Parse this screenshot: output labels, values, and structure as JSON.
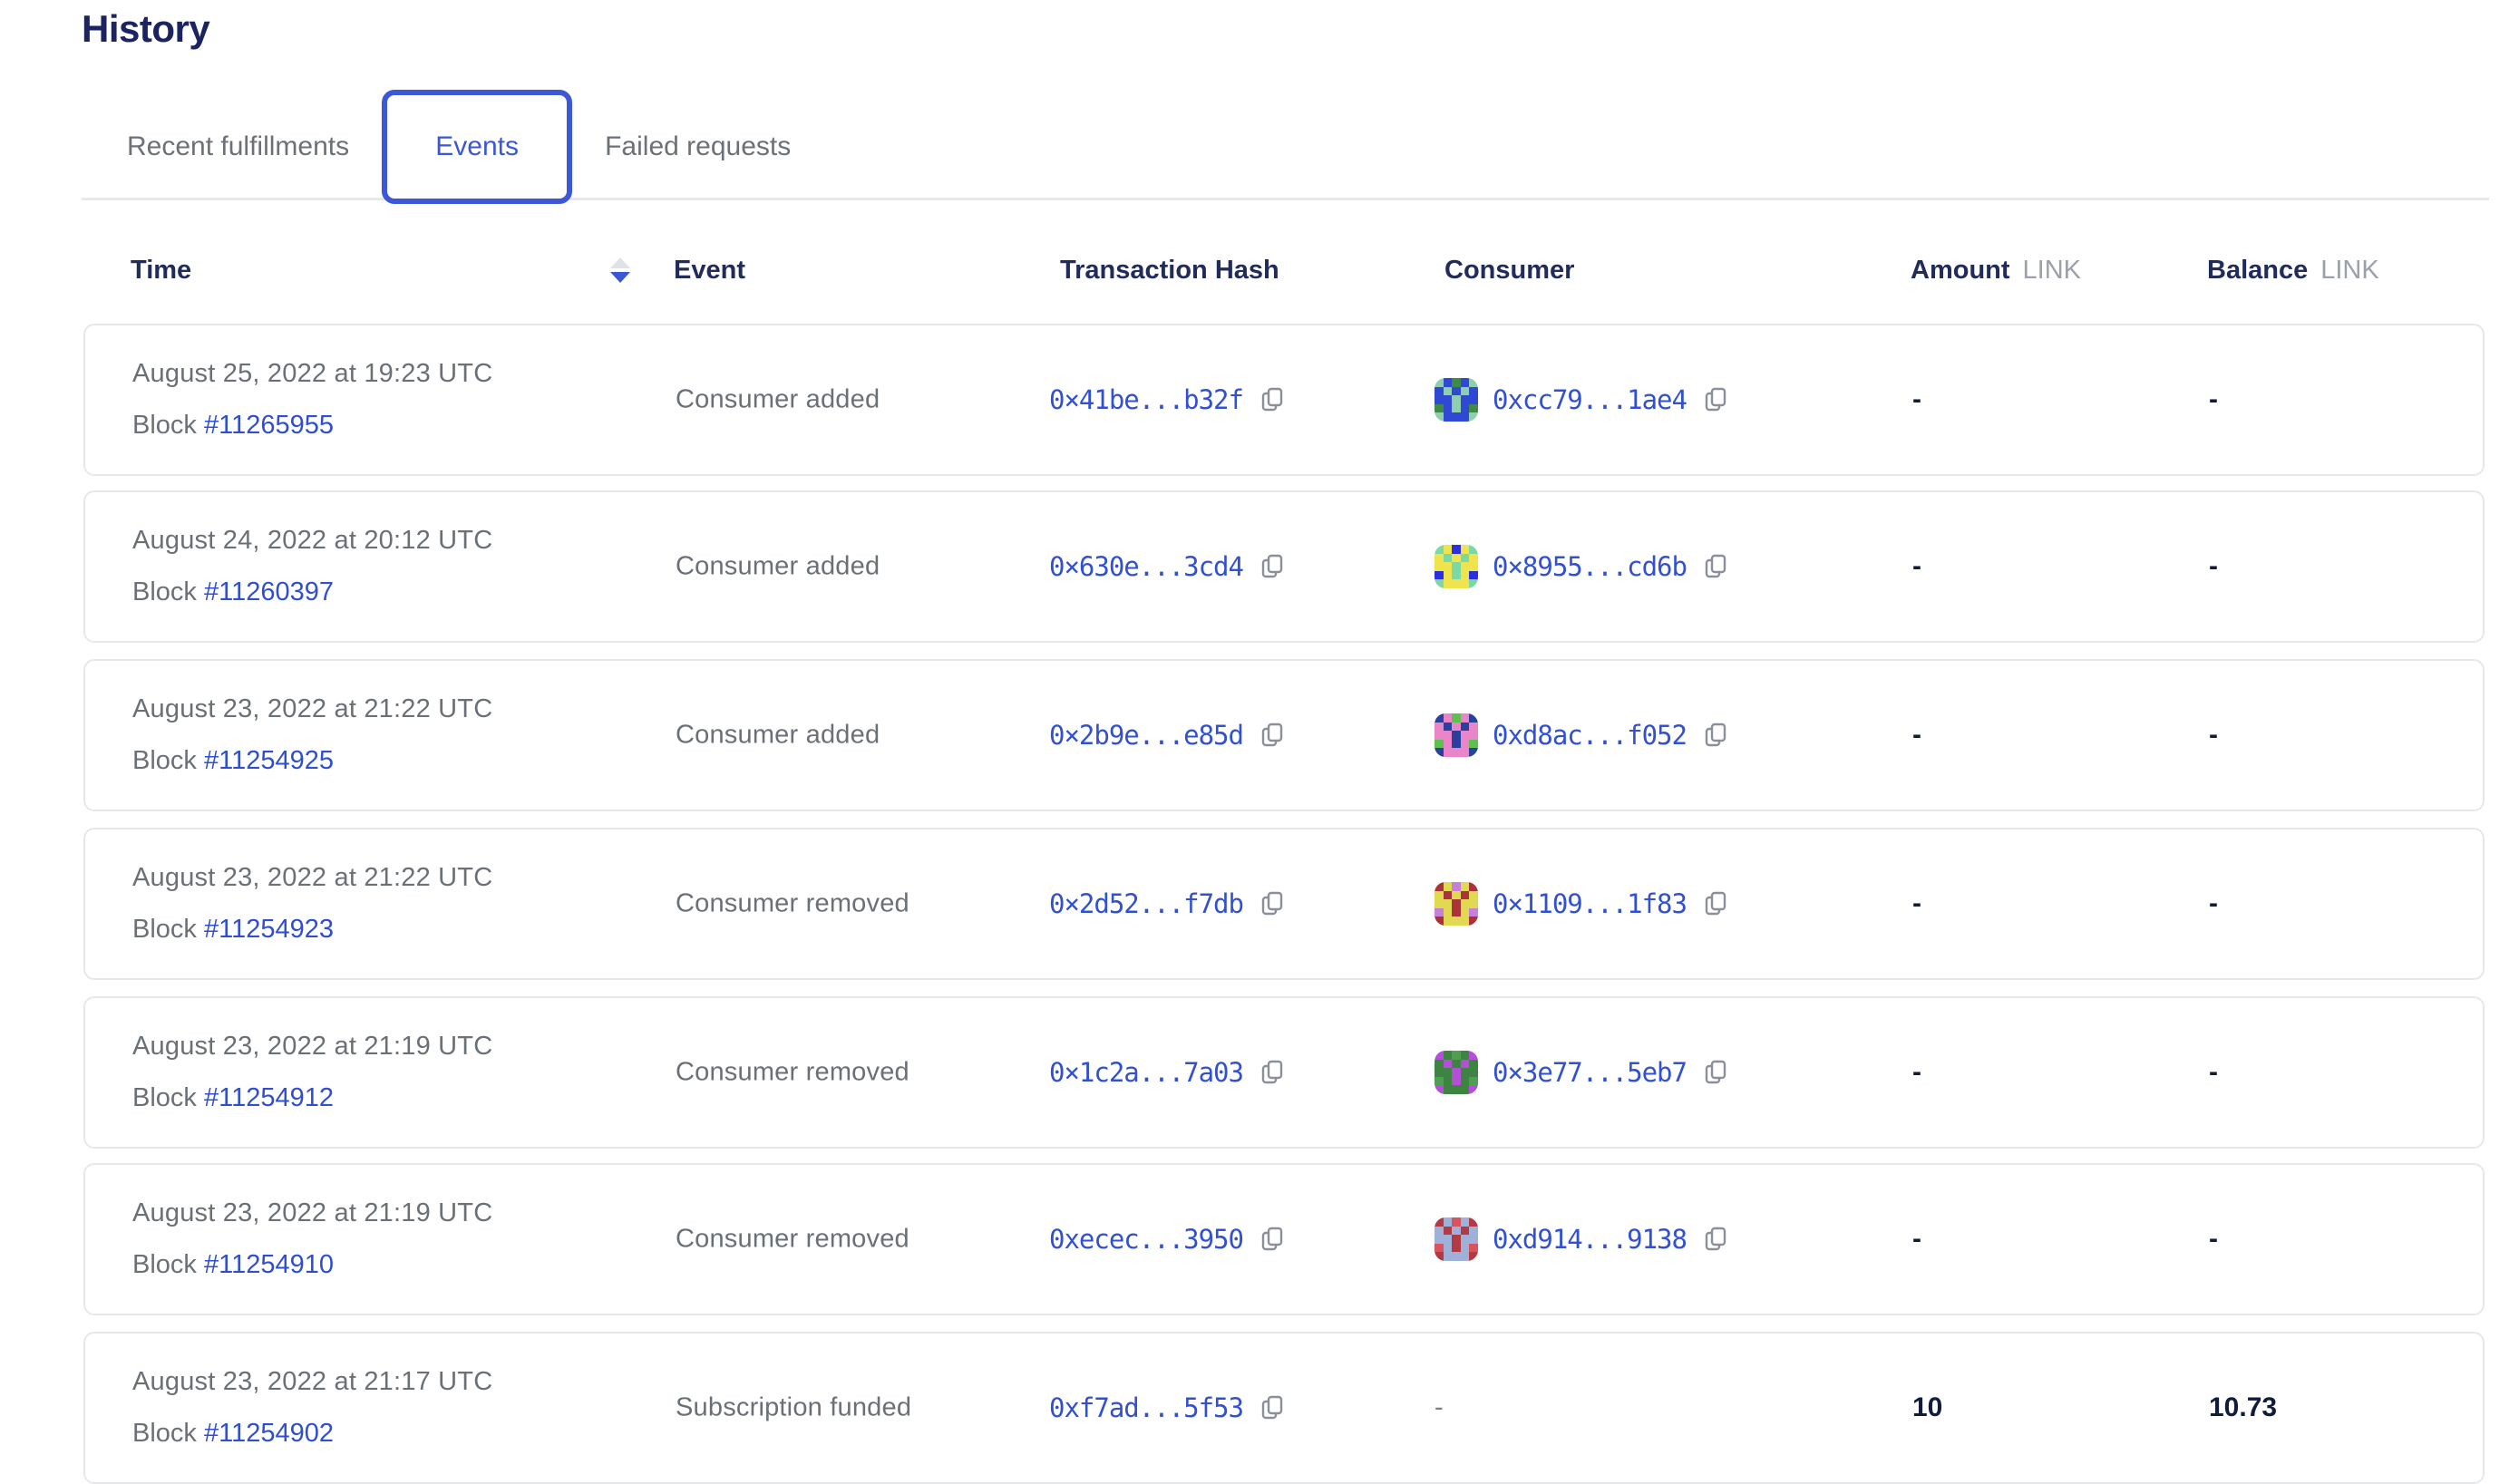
{
  "page": {
    "title": "History"
  },
  "tabs": {
    "items": [
      {
        "label": "Recent fulfillments",
        "active": false
      },
      {
        "label": "Events",
        "active": true
      },
      {
        "label": "Failed requests",
        "active": false
      }
    ]
  },
  "table": {
    "headers": {
      "time": "Time",
      "event": "Event",
      "tx": "Transaction Hash",
      "consumer": "Consumer",
      "amount": "Amount",
      "amount_unit": "LINK",
      "balance": "Balance",
      "balance_unit": "LINK"
    },
    "sort": {
      "column": "Time",
      "direction": "descending"
    },
    "block_label": "Block",
    "rows": [
      {
        "date": "August 25, 2022 at 19:23 UTC",
        "block": "#11265955",
        "event": "Consumer added",
        "tx": "0×41be...b32f",
        "consumer": "0xcc79...1ae4",
        "consumer_icon": {
          "name": "blockie-green-blue",
          "bg": "#3f8a45",
          "fg": "#2f49d5",
          "accent": "#8ecfae"
        },
        "amount": "-",
        "balance": "-"
      },
      {
        "date": "August 24, 2022 at 20:12 UTC",
        "block": "#11260397",
        "event": "Consumer added",
        "tx": "0×630e...3cd4",
        "consumer": "0×8955...cd6b",
        "consumer_icon": {
          "name": "blockie-blue-yellow",
          "bg": "#2b2fdf",
          "fg": "#efe44d",
          "accent": "#7bd9a5"
        },
        "amount": "-",
        "balance": "-"
      },
      {
        "date": "August 23, 2022 at 21:22 UTC",
        "block": "#11254925",
        "event": "Consumer added",
        "tx": "0×2b9e...e85d",
        "consumer": "0xd8ac...f052",
        "consumer_icon": {
          "name": "blockie-green-pink",
          "bg": "#5cc14d",
          "fg": "#e985c8",
          "accent": "#2b3f9d"
        },
        "amount": "-",
        "balance": "-"
      },
      {
        "date": "August 23, 2022 at 21:22 UTC",
        "block": "#11254923",
        "event": "Consumer removed",
        "tx": "0×2d52...f7db",
        "consumer": "0×1109...1f83",
        "consumer_icon": {
          "name": "blockie-violet-yellow",
          "bg": "#c77fd9",
          "fg": "#e2d952",
          "accent": "#a93339"
        },
        "amount": "-",
        "balance": "-"
      },
      {
        "date": "August 23, 2022 at 21:19 UTC",
        "block": "#11254912",
        "event": "Consumer removed",
        "tx": "0×1c2a...7a03",
        "consumer": "0×3e77...5eb7",
        "consumer_icon": {
          "name": "blockie-green-magenta",
          "bg": "#4f9e51",
          "fg": "#3d8443",
          "accent": "#b44fd8"
        },
        "amount": "-",
        "balance": "-"
      },
      {
        "date": "August 23, 2022 at 21:19 UTC",
        "block": "#11254910",
        "event": "Consumer removed",
        "tx": "0xecec...3950",
        "consumer": "0xd914...9138",
        "consumer_icon": {
          "name": "blockie-red-steel",
          "bg": "#d8535c",
          "fg": "#9fb0d9",
          "accent": "#b23a44"
        },
        "amount": "-",
        "balance": "-"
      },
      {
        "date": "August 23, 2022 at 21:17 UTC",
        "block": "#11254902",
        "event": "Subscription funded",
        "tx": "0xf7ad...5f53",
        "consumer": null,
        "consumer_icon": null,
        "amount": "10",
        "balance": "10.73"
      }
    ]
  },
  "colors": {
    "accent_blue": "#3b57d4",
    "link_blue": "#3150d2",
    "heading_navy": "#1b2361",
    "text_gray": "#6a7077",
    "unit_gray": "#9aa1ac",
    "border_gray": "#e6e7e9"
  }
}
